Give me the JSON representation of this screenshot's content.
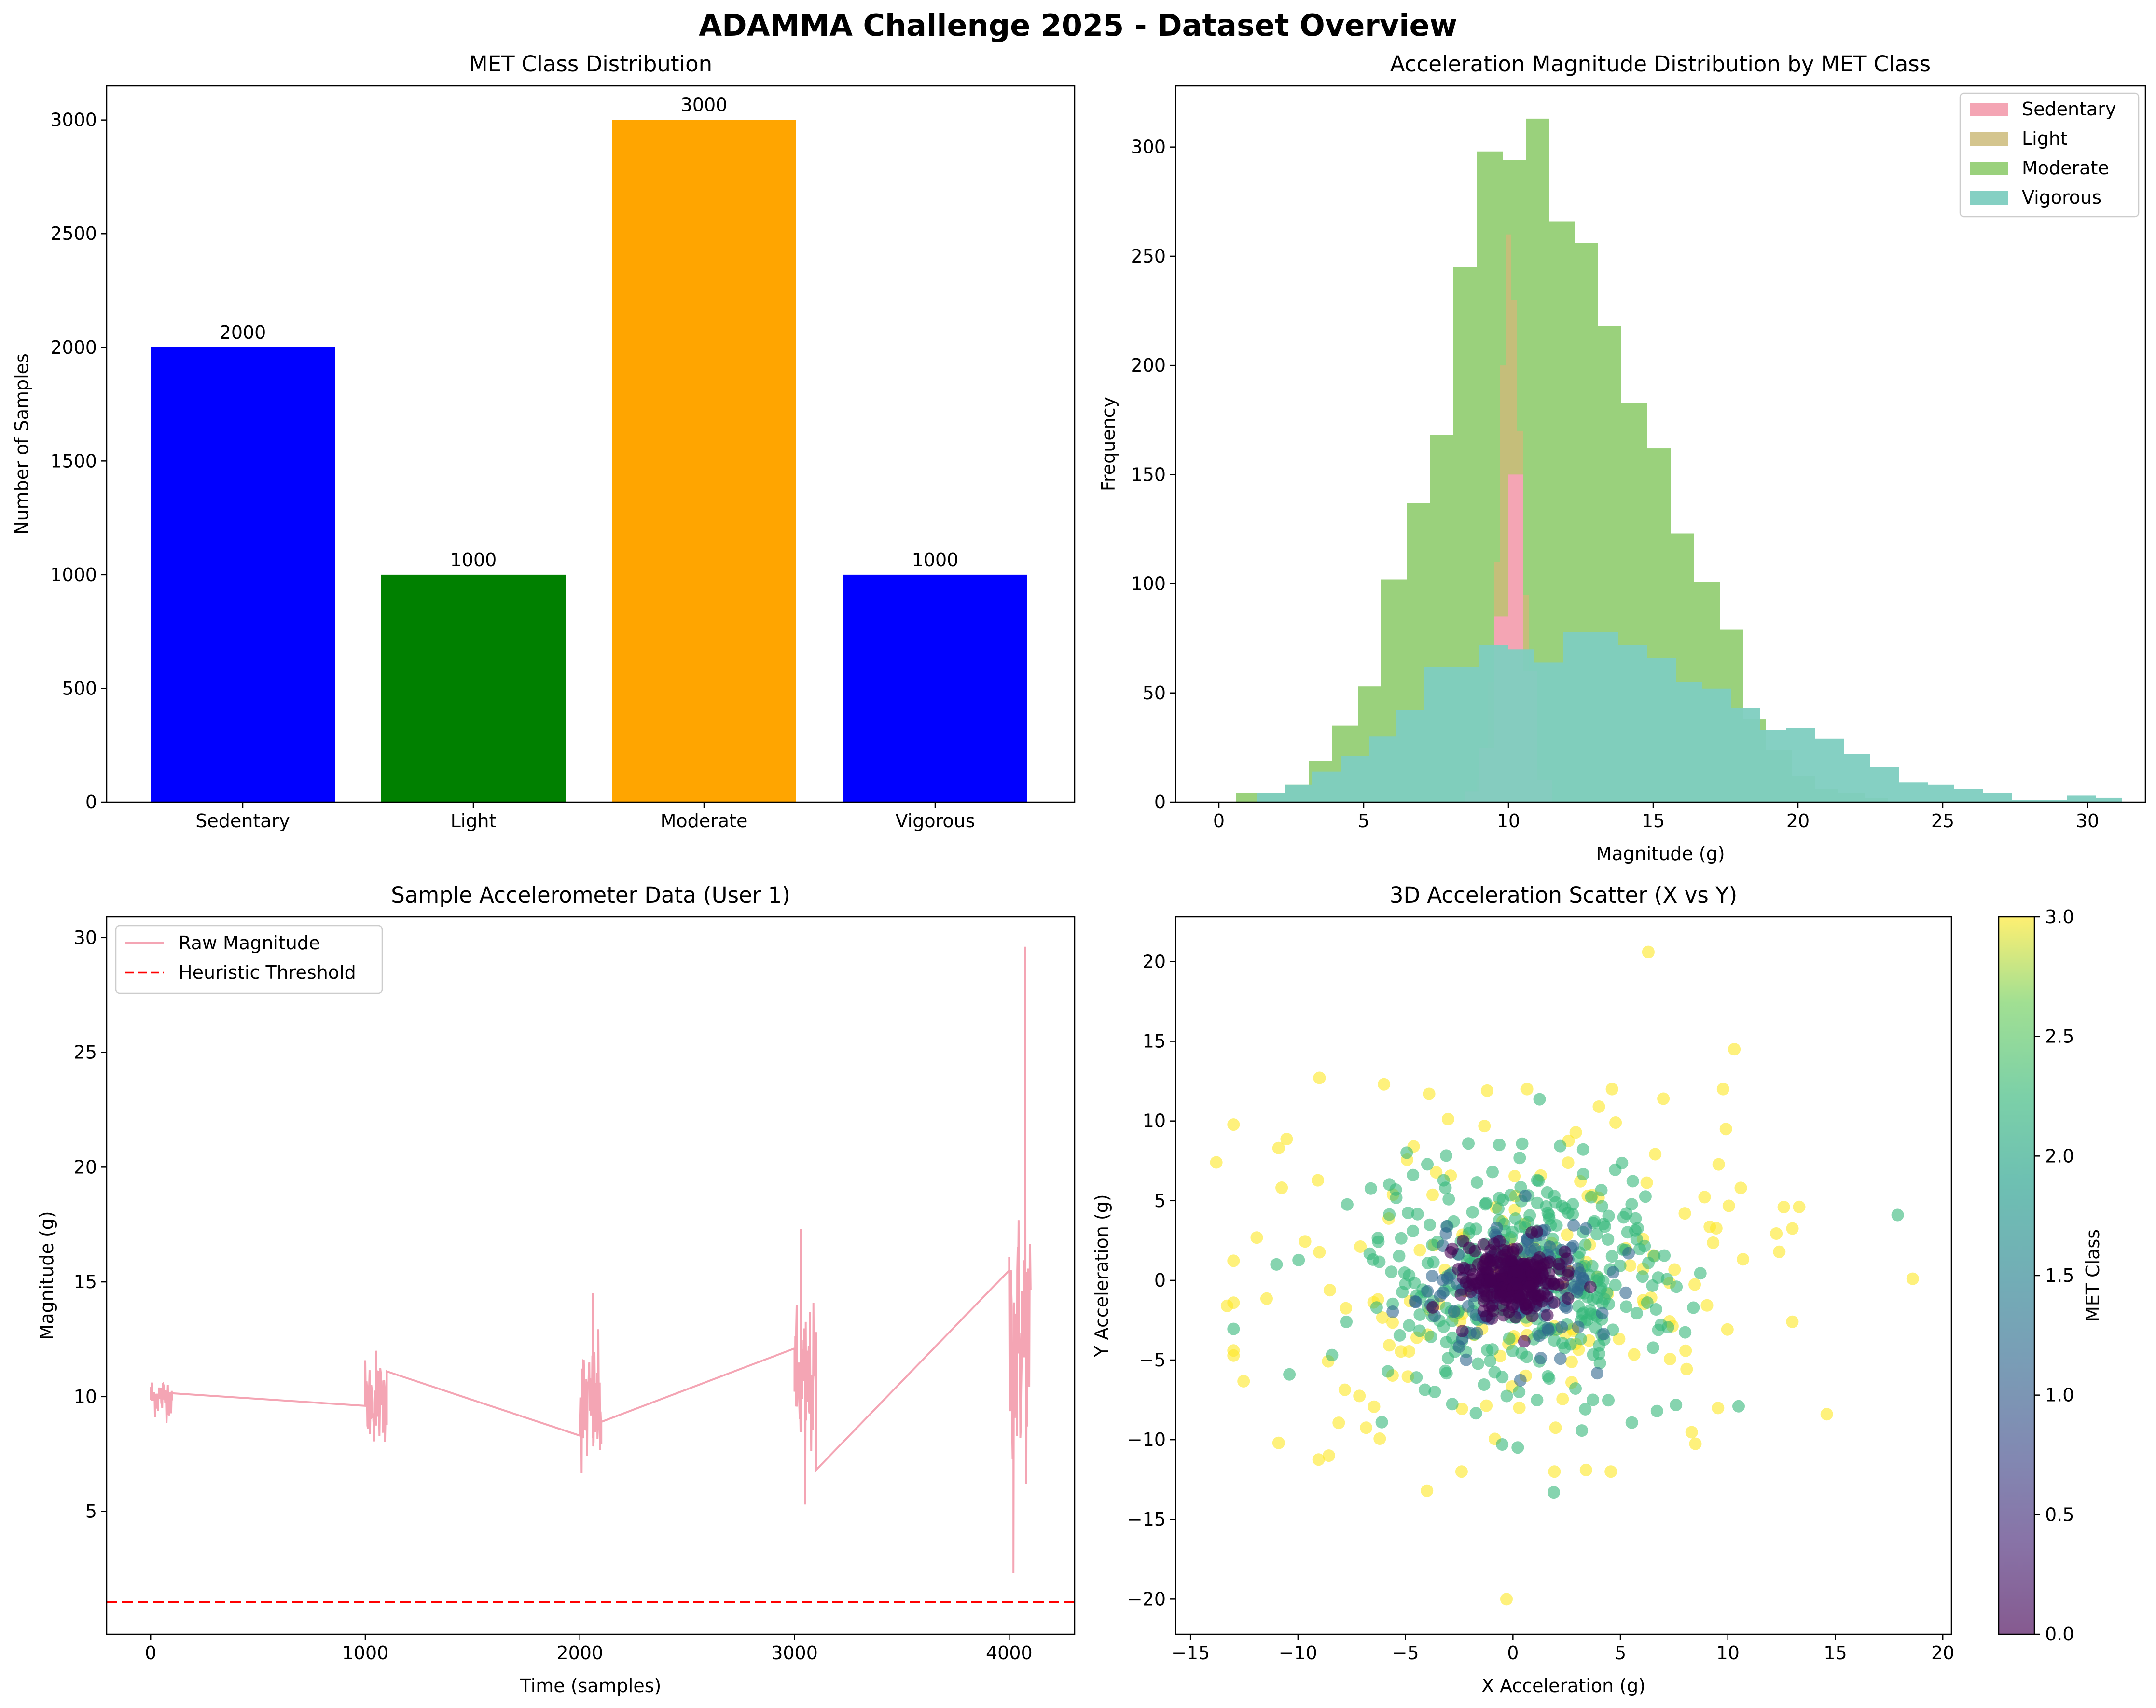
{
  "figure": {
    "suptitle": "ADAMMA Challenge 2025 - Dataset Overview"
  },
  "chart_data": [
    {
      "type": "bar",
      "title": "MET Class Distribution",
      "xlabel": "",
      "ylabel": "Number of Samples",
      "categories": [
        "Sedentary",
        "Light",
        "Moderate",
        "Vigorous"
      ],
      "values": [
        2000,
        1000,
        3000,
        1000
      ],
      "data_labels": [
        "2000",
        "1000",
        "3000",
        "1000"
      ],
      "colors": [
        "#0000ff",
        "#008000",
        "#ffa500",
        "#0000ff"
      ],
      "ylim": [
        0,
        3150
      ],
      "yticks": [
        0,
        500,
        1000,
        1500,
        2000,
        2500,
        3000
      ]
    },
    {
      "type": "histogram",
      "title": "Acceleration Magnitude Distribution by MET Class",
      "xlabel": "Magnitude (g)",
      "ylabel": "Frequency",
      "xlim": [
        -1.5,
        32.0
      ],
      "ylim": [
        0,
        328
      ],
      "xticks": [
        0,
        5,
        10,
        15,
        20,
        25,
        30
      ],
      "yticks": [
        0,
        50,
        100,
        150,
        200,
        250,
        300
      ],
      "legend_position": "top-right",
      "series": [
        {
          "name": "Sedentary",
          "color": "#f4a5b4",
          "alpha": 1.0,
          "bins": [
            [
              8.5,
              9.0,
              5
            ],
            [
              9.0,
              9.5,
              25
            ],
            [
              9.5,
              10.0,
              85
            ],
            [
              10.0,
              10.5,
              150
            ],
            [
              10.5,
              11.0,
              60
            ],
            [
              11.0,
              11.5,
              10
            ]
          ]
        },
        {
          "name": "Light",
          "color": "#ccbb7a",
          "alpha": 0.85,
          "bins": [
            [
              8.6,
              8.9,
              4
            ],
            [
              8.9,
              9.1,
              10
            ],
            [
              9.1,
              9.3,
              25
            ],
            [
              9.3,
              9.5,
              55
            ],
            [
              9.5,
              9.7,
              110
            ],
            [
              9.7,
              9.9,
              200
            ],
            [
              9.9,
              10.1,
              260
            ],
            [
              10.1,
              10.3,
              230
            ],
            [
              10.3,
              10.5,
              170
            ],
            [
              10.5,
              10.7,
              95
            ],
            [
              10.7,
              10.9,
              40
            ],
            [
              10.9,
              11.1,
              15
            ],
            [
              11.1,
              11.3,
              5
            ]
          ]
        },
        {
          "name": "Moderate",
          "color": "#8fcc6e",
          "alpha": 0.9,
          "bins": [
            [
              0.6,
              1.5,
              4
            ],
            [
              1.5,
              2.3,
              4
            ],
            [
              2.3,
              3.1,
              8
            ],
            [
              3.1,
              3.9,
              19
            ],
            [
              3.9,
              4.8,
              35
            ],
            [
              4.8,
              5.6,
              53
            ],
            [
              5.6,
              6.5,
              102
            ],
            [
              6.5,
              7.3,
              137
            ],
            [
              7.3,
              8.1,
              168
            ],
            [
              8.1,
              8.9,
              245
            ],
            [
              8.9,
              9.8,
              298
            ],
            [
              9.8,
              10.6,
              294
            ],
            [
              10.6,
              11.4,
              313
            ],
            [
              11.4,
              12.3,
              266
            ],
            [
              12.3,
              13.1,
              256
            ],
            [
              13.1,
              13.9,
              218
            ],
            [
              13.9,
              14.8,
              183
            ],
            [
              14.8,
              15.6,
              162
            ],
            [
              15.6,
              16.4,
              123
            ],
            [
              16.4,
              17.3,
              101
            ],
            [
              17.3,
              18.1,
              79
            ],
            [
              18.1,
              18.9,
              38
            ],
            [
              18.9,
              19.8,
              24
            ],
            [
              19.8,
              20.6,
              12
            ],
            [
              20.6,
              21.4,
              6
            ],
            [
              21.4,
              22.3,
              4
            ],
            [
              22.3,
              23.1,
              2
            ]
          ]
        },
        {
          "name": "Vigorous",
          "color": "#7ecdc0",
          "alpha": 0.95,
          "bins": [
            [
              1.3,
              2.3,
              4
            ],
            [
              2.3,
              3.2,
              8
            ],
            [
              3.2,
              4.2,
              14
            ],
            [
              4.2,
              5.2,
              21
            ],
            [
              5.2,
              6.1,
              30
            ],
            [
              6.1,
              7.1,
              42
            ],
            [
              7.1,
              8.1,
              62
            ],
            [
              8.1,
              9.0,
              62
            ],
            [
              9.0,
              10.0,
              72
            ],
            [
              10.0,
              10.9,
              70
            ],
            [
              10.9,
              11.9,
              64
            ],
            [
              11.9,
              12.9,
              78
            ],
            [
              12.9,
              13.8,
              78
            ],
            [
              13.8,
              14.8,
              72
            ],
            [
              14.8,
              15.8,
              66
            ],
            [
              15.8,
              16.7,
              55
            ],
            [
              16.7,
              17.7,
              52
            ],
            [
              17.7,
              18.7,
              43
            ],
            [
              18.7,
              19.6,
              33
            ],
            [
              19.6,
              20.6,
              34
            ],
            [
              20.6,
              21.6,
              29
            ],
            [
              21.6,
              22.5,
              22
            ],
            [
              22.5,
              23.5,
              16
            ],
            [
              23.5,
              24.5,
              9
            ],
            [
              24.5,
              25.4,
              8
            ],
            [
              25.4,
              26.4,
              6
            ],
            [
              26.4,
              27.4,
              4
            ],
            [
              27.4,
              28.3,
              1
            ],
            [
              28.3,
              29.3,
              1
            ],
            [
              29.3,
              30.3,
              3
            ],
            [
              30.3,
              31.2,
              2
            ]
          ]
        }
      ]
    },
    {
      "type": "line",
      "title": "Sample Accelerometer Data (User 1)",
      "xlabel": "Time (samples)",
      "ylabel": "Magnitude (g)",
      "xlim": [
        -205,
        4305
      ],
      "ylim": [
        -0.35,
        30.9
      ],
      "xticks": [
        0,
        1000,
        2000,
        3000,
        4000
      ],
      "yticks": [
        5,
        10,
        15,
        20,
        25,
        30
      ],
      "legend_position": "top-left",
      "series": [
        {
          "name": "Raw Magnitude",
          "color": "#f4a5b4",
          "segments": [
            {
              "start": 0,
              "end": 100,
              "center": 10.0,
              "spread": 0.8
            },
            {
              "start": 1000,
              "end": 1100,
              "center": 9.8,
              "spread": 1.6
            },
            {
              "start": 2000,
              "end": 2100,
              "center": 9.5,
              "spread": 2.5
            },
            {
              "start": 3000,
              "end": 3100,
              "center": 10.5,
              "spread": 3.0
            },
            {
              "start": 4000,
              "end": 4100,
              "center": 12.5,
              "spread": 5.0
            }
          ],
          "connectors": [
            [
              96,
              10.15,
              1000,
              9.6
            ],
            [
              1100,
              11.1,
              2000,
              8.3
            ],
            [
              2100,
              8.9,
              3000,
              12.1
            ],
            [
              3100,
              6.8,
              4000,
              15.5
            ]
          ],
          "extremes": [
            [
              4075,
              29.6
            ],
            [
              4020,
              2.3
            ],
            [
              2060,
              14.5
            ],
            [
              3030,
              17.3
            ],
            [
              3050,
              5.3
            ],
            [
              1050,
              12.0
            ]
          ]
        },
        {
          "name": "Heuristic Threshold",
          "color": "#ff0000",
          "style": "dashed",
          "y": 1.05
        }
      ]
    },
    {
      "type": "scatter",
      "title": "3D Acceleration Scatter (X vs Y)",
      "xlabel": "X Acceleration (g)",
      "ylabel": "Y Acceleration (g)",
      "xlim": [
        -15.7,
        20.4
      ],
      "ylim": [
        -22.2,
        22.8
      ],
      "xticks": [
        -15,
        -10,
        -5,
        0,
        5,
        10,
        15,
        20
      ],
      "yticks": [
        -20,
        -15,
        -10,
        -5,
        0,
        5,
        10,
        15,
        20
      ],
      "colorbar": {
        "label": "MET Class",
        "range": [
          0,
          3
        ],
        "ticks": [
          "0.0",
          "0.5",
          "1.0",
          "1.5",
          "2.0",
          "2.5",
          "3.0"
        ],
        "colormap": "viridis"
      },
      "classes": [
        {
          "value": 0,
          "color": "#440154",
          "count": 260,
          "sd": 1.1
        },
        {
          "value": 1,
          "color": "#31688e",
          "count": 130,
          "sd": 2.2
        },
        {
          "value": 2,
          "color": "#35b779",
          "count": 380,
          "sd": 3.6
        },
        {
          "value": 3,
          "color": "#fde725",
          "count": 170,
          "sd": 5.8
        }
      ],
      "outliers": [
        [
          6.3,
          20.6,
          3
        ],
        [
          -0.3,
          -20.0,
          3
        ],
        [
          18.6,
          0.1,
          3
        ],
        [
          17.9,
          4.1,
          2
        ],
        [
          -13.8,
          7.4,
          3
        ],
        [
          10.3,
          14.5,
          3
        ],
        [
          -9.0,
          12.7,
          3
        ],
        [
          -6.0,
          12.3,
          3
        ],
        [
          14.6,
          -8.4,
          3
        ],
        [
          -10.9,
          -10.2,
          3
        ],
        [
          1.9,
          -13.3,
          2
        ],
        [
          -4.0,
          -13.2,
          3
        ],
        [
          -13.3,
          -1.6,
          3
        ],
        [
          -10.9,
          8.3,
          3
        ],
        [
          13.0,
          -2.6,
          3
        ],
        [
          10.5,
          -7.9,
          2
        ],
        [
          -10.4,
          -5.9,
          2
        ],
        [
          -6.1,
          -8.9,
          2
        ],
        [
          3.4,
          -11.9,
          3
        ],
        [
          -0.5,
          -10.3,
          2
        ],
        [
          12.6,
          4.6,
          3
        ],
        [
          7.0,
          11.4,
          3
        ],
        [
          10.6,
          5.8,
          3
        ],
        [
          -11.0,
          1.0,
          2
        ],
        [
          6.7,
          -8.2,
          2
        ],
        [
          -1.2,
          11.9,
          3
        ],
        [
          -3.9,
          11.7,
          3
        ],
        [
          4.0,
          10.9,
          3
        ]
      ]
    }
  ]
}
